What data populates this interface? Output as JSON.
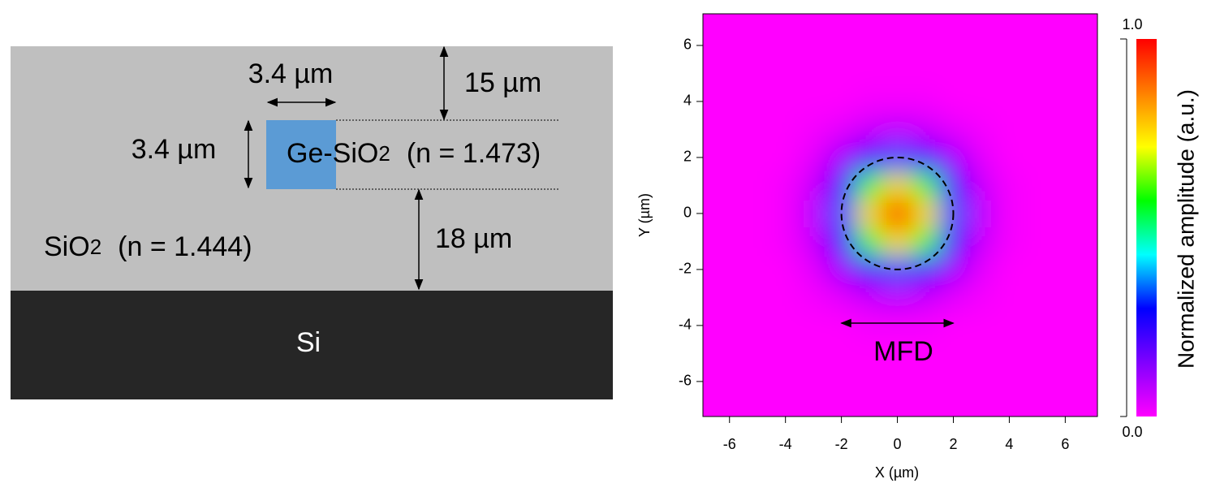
{
  "diagram": {
    "core_width": "3.4 µm",
    "core_height": "3.4 µm",
    "top_cladding": "15 µm",
    "bottom_cladding": "18 µm",
    "core_label": "Ge-SiO",
    "core_sub": "2",
    "core_index": "(n = 1.473)",
    "cladding_label": "SiO",
    "cladding_sub": "2",
    "cladding_index": "(n = 1.444)",
    "substrate": "Si"
  },
  "chart_data": {
    "type": "heatmap",
    "xlabel": "X (µm)",
    "ylabel": "Y (µm)",
    "colorbar_label": "Normalized amplitude (a.u.)",
    "annotation": "MFD",
    "mfd_radius": 2.0,
    "xlim": [
      -6.95,
      7.15
    ],
    "ylim": [
      -7.25,
      7.13
    ],
    "xticks": [
      -6,
      -4,
      -2,
      0,
      2,
      4,
      6
    ],
    "yticks": [
      -6,
      -4,
      -2,
      0,
      2,
      4,
      6
    ],
    "clim": [
      0,
      1
    ],
    "cticks": [
      {
        "value": 1,
        "label": "1.0"
      },
      {
        "value": 0,
        "label": "0.0"
      }
    ],
    "colormap": [
      "#ff00ff",
      "#8000ff",
      "#0000ff",
      "#00ffff",
      "#00ff00",
      "#ffff00",
      "#ff8000",
      "#ff0000"
    ],
    "x": [
      -7,
      -6,
      -5,
      -4,
      -3,
      -2,
      -1,
      0,
      1,
      2,
      3,
      4,
      5,
      6,
      7
    ],
    "y": [
      -7,
      -6,
      -5,
      -4,
      -3,
      -2,
      -1,
      0,
      1,
      2,
      3,
      4,
      5,
      6,
      7
    ],
    "z": [
      [
        0,
        0,
        0,
        0,
        0,
        0,
        0,
        0,
        0,
        0,
        0,
        0,
        0,
        0,
        0
      ],
      [
        0,
        0,
        0,
        0,
        0,
        0,
        0,
        0,
        0,
        0,
        0,
        0,
        0,
        0,
        0
      ],
      [
        0,
        0,
        0,
        0,
        0,
        0,
        0,
        0,
        0,
        0,
        0,
        0,
        0,
        0,
        0
      ],
      [
        0,
        0,
        0,
        0,
        0,
        0,
        0.01,
        0.01,
        0.01,
        0,
        0,
        0,
        0,
        0,
        0
      ],
      [
        0,
        0,
        0,
        0,
        0.01,
        0.03,
        0.06,
        0.08,
        0.06,
        0.03,
        0.01,
        0,
        0,
        0,
        0
      ],
      [
        0,
        0,
        0,
        0,
        0.03,
        0.11,
        0.25,
        0.33,
        0.25,
        0.11,
        0.03,
        0,
        0,
        0,
        0
      ],
      [
        0,
        0,
        0,
        0.01,
        0.06,
        0.25,
        0.57,
        0.76,
        0.57,
        0.25,
        0.06,
        0.01,
        0,
        0,
        0
      ],
      [
        0,
        0,
        0,
        0.01,
        0.08,
        0.33,
        0.76,
        1,
        0.76,
        0.33,
        0.08,
        0.01,
        0,
        0,
        0
      ],
      [
        0,
        0,
        0,
        0.01,
        0.06,
        0.25,
        0.57,
        0.76,
        0.57,
        0.25,
        0.06,
        0.01,
        0,
        0,
        0
      ],
      [
        0,
        0,
        0,
        0,
        0.03,
        0.11,
        0.25,
        0.33,
        0.25,
        0.11,
        0.03,
        0,
        0,
        0,
        0
      ],
      [
        0,
        0,
        0,
        0,
        0.01,
        0.03,
        0.06,
        0.08,
        0.06,
        0.03,
        0.01,
        0,
        0,
        0,
        0
      ],
      [
        0,
        0,
        0,
        0,
        0,
        0,
        0.01,
        0.01,
        0.01,
        0,
        0,
        0,
        0,
        0,
        0
      ],
      [
        0,
        0,
        0,
        0,
        0,
        0,
        0,
        0,
        0,
        0,
        0,
        0,
        0,
        0,
        0
      ],
      [
        0,
        0,
        0,
        0,
        0,
        0,
        0,
        0,
        0,
        0,
        0,
        0,
        0,
        0,
        0
      ],
      [
        0,
        0,
        0,
        0,
        0,
        0,
        0,
        0,
        0,
        0,
        0,
        0,
        0,
        0,
        0
      ]
    ]
  }
}
